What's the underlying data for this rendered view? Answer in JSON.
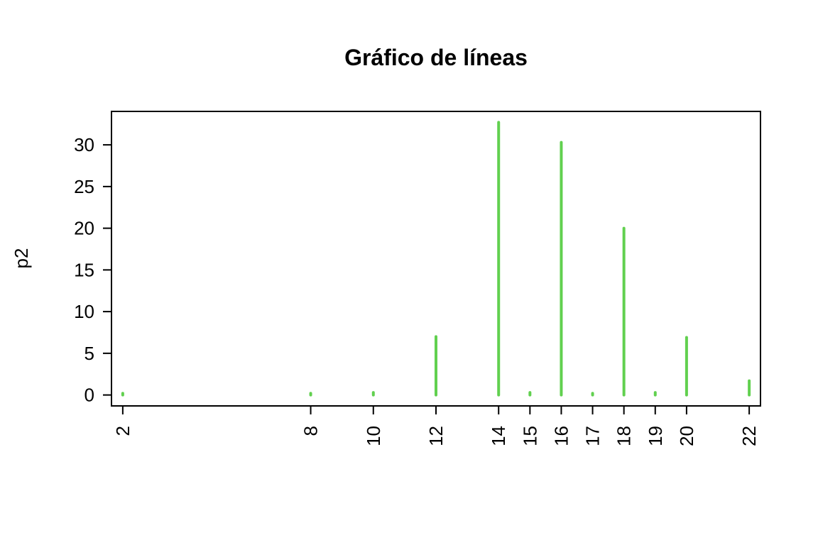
{
  "chart_data": {
    "type": "bar",
    "title": "Gráfico de líneas",
    "xlabel": "",
    "ylabel": "p2",
    "color": "#61D04F",
    "x": [
      2,
      8,
      10,
      12,
      14,
      15,
      16,
      17,
      18,
      19,
      20,
      22
    ],
    "values": [
      0.2,
      0.2,
      0.3,
      7.0,
      32.7,
      0.3,
      30.3,
      0.2,
      20.0,
      0.3,
      6.9,
      1.7
    ],
    "xticks": [
      2,
      8,
      10,
      12,
      14,
      15,
      16,
      17,
      18,
      19,
      20,
      22
    ],
    "yticks": [
      0,
      5,
      10,
      15,
      20,
      25,
      30
    ],
    "xlim": [
      1.64,
      22.36
    ],
    "ylim": [
      -1.31,
      34.01
    ],
    "grid": false,
    "legend": "none"
  }
}
